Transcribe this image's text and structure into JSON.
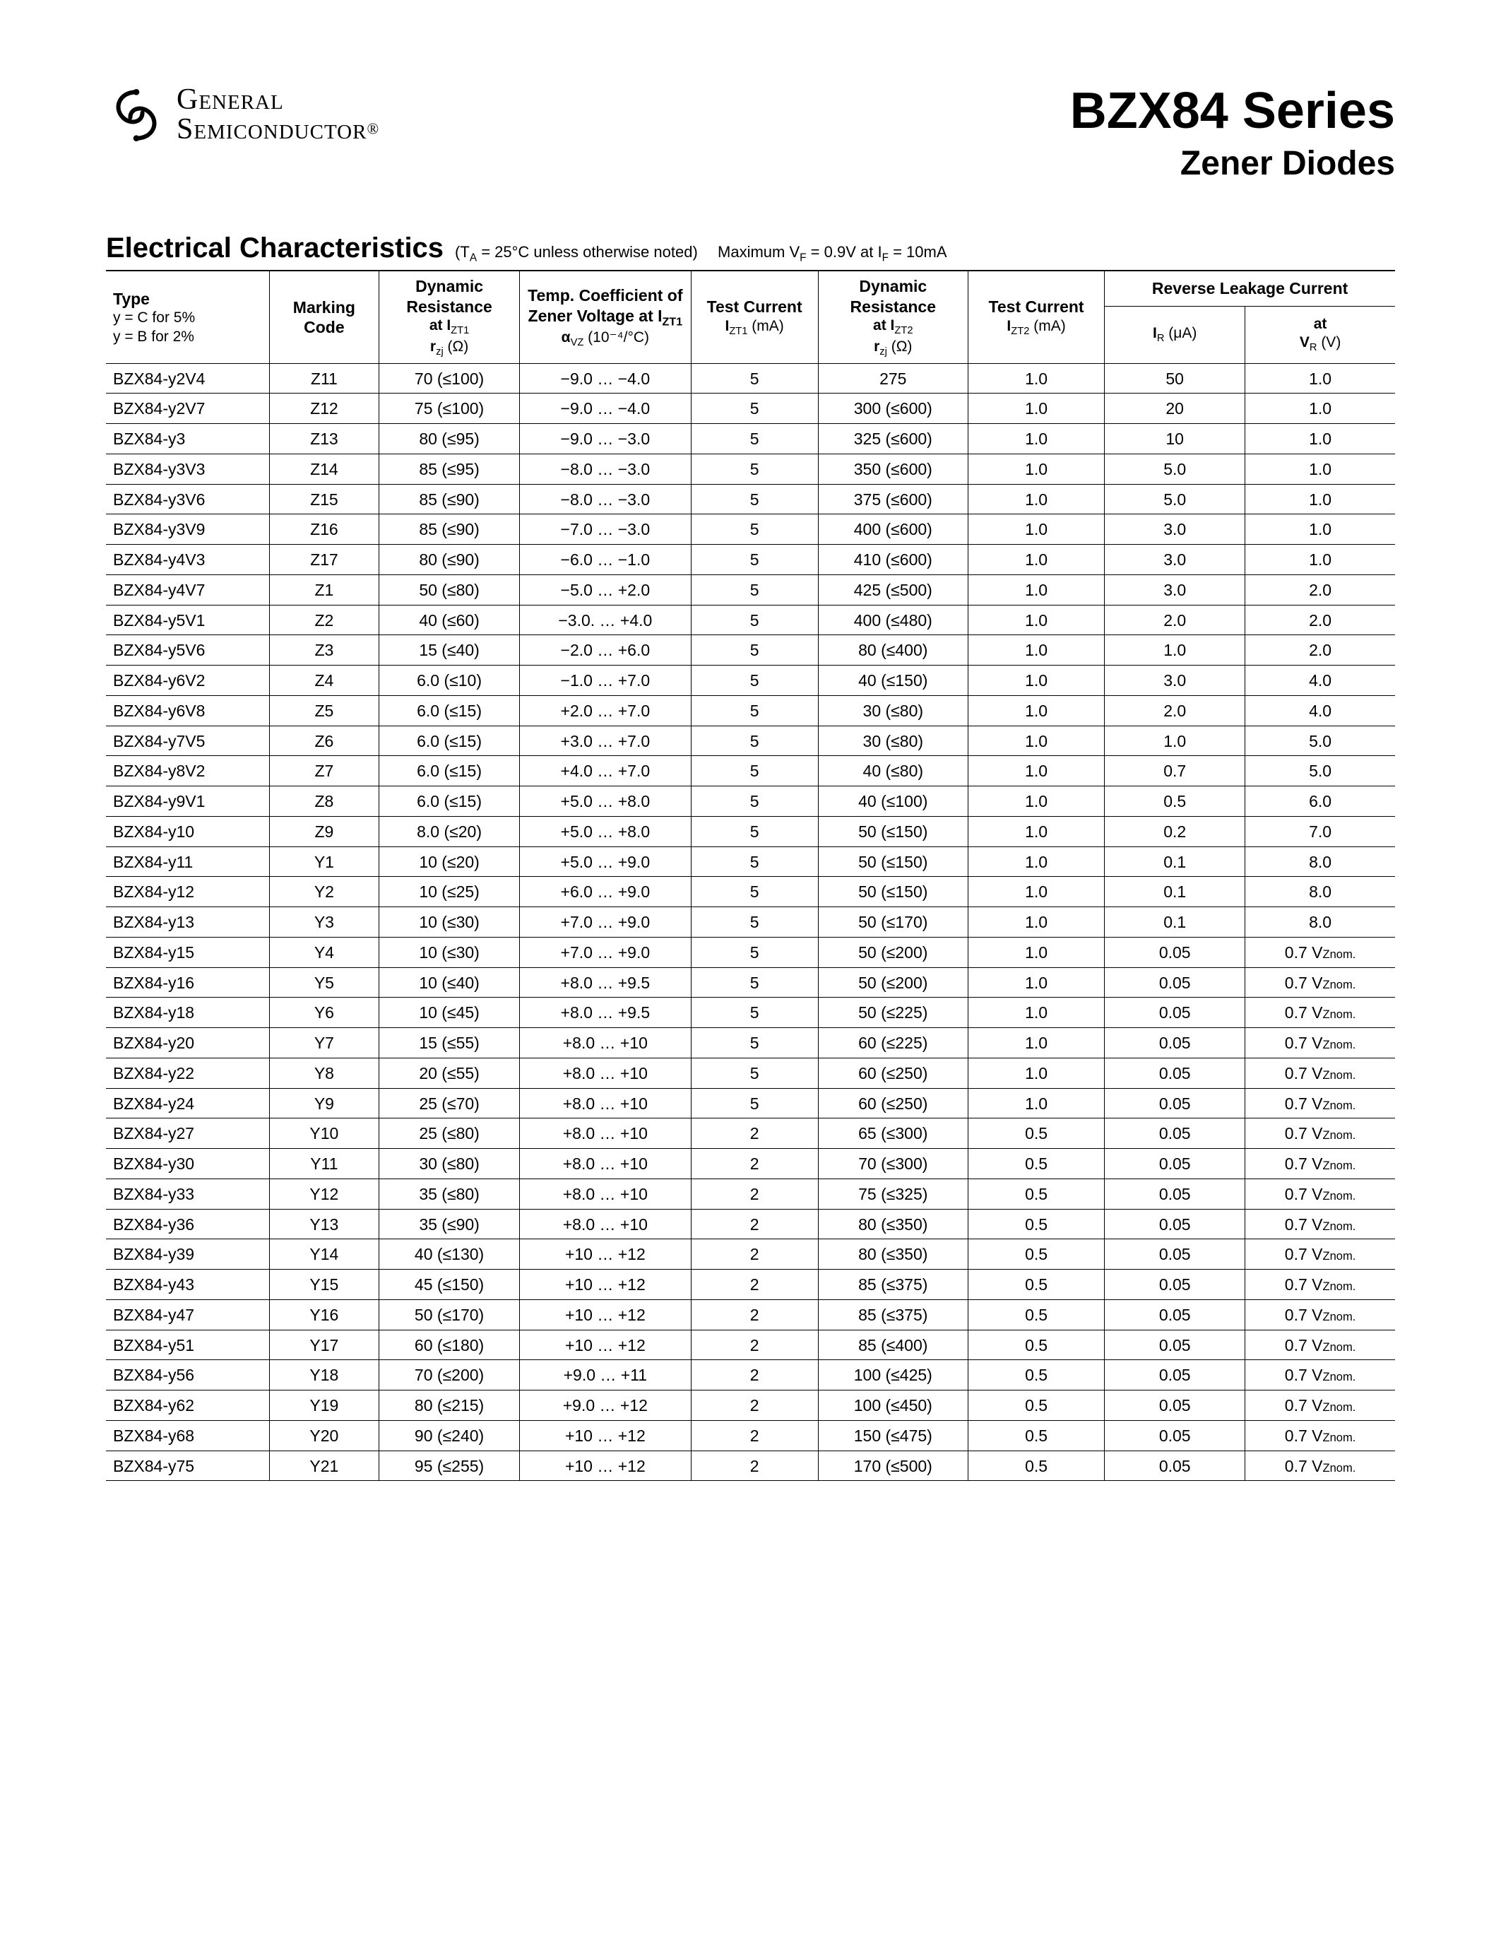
{
  "brand": {
    "line1": "General",
    "line2": "Semiconductor",
    "reg": "®"
  },
  "title": {
    "main": "BZX84 Series",
    "sub": "Zener Diodes"
  },
  "section": {
    "heading": "Electrical Characteristics",
    "note1_prefix": "(T",
    "note1_sub": "A",
    "note1_rest": " = 25°C unless otherwise noted)",
    "note2": "Maximum V",
    "note2_sub": "F",
    "note2_mid": " = 0.9V at I",
    "note2_sub2": "F",
    "note2_end": " = 10mA"
  },
  "headers": {
    "type_label": "Type",
    "type_note1": "y = C for 5%",
    "type_note2": "y = B for 2%",
    "marking": "Marking Code",
    "dynres1_a": "Dynamic Resistance",
    "dynres1_b": "at I",
    "dynres1_b_sub": "ZT1",
    "dynres1_c": "r",
    "dynres1_c_sub": "zj",
    "dynres1_c_unit": " (Ω)",
    "tc_a": "Temp. Coefficient of Zener Voltage at I",
    "tc_a_sub": "ZT1",
    "tc_b": "α",
    "tc_b_sub": "VZ",
    "tc_b_unit": " (10⁻⁴/°C)",
    "testcur1_a": "Test Current",
    "testcur1_b": "I",
    "testcur1_b_sub": "ZT1",
    "testcur1_b_unit": " (mA)",
    "dynres2_a": "Dynamic Resistance",
    "dynres2_b": "at I",
    "dynres2_b_sub": "ZT2",
    "dynres2_c": "r",
    "dynres2_c_sub": "zj",
    "dynres2_c_unit": " (Ω)",
    "testcur2_a": "Test Current",
    "testcur2_b": "I",
    "testcur2_b_sub": "ZT2",
    "testcur2_b_unit": " (mA)",
    "rlc_top": "Reverse Leakage Current",
    "rlc_ir": "I",
    "rlc_ir_sub": "R",
    "rlc_ir_unit": " (μA)",
    "rlc_at": "at",
    "rlc_vr": "V",
    "rlc_vr_sub": "R",
    "rlc_vr_unit": " (V)"
  },
  "rows": [
    {
      "type": "BZX84-y2V4",
      "code": "Z11",
      "rzj1": "70 (≤100)",
      "tc": "−9.0 … −4.0",
      "izt1": "5",
      "rzj2": "275",
      "izt2": "1.0",
      "ir": "50",
      "vr": "1.0",
      "vz": false
    },
    {
      "type": "BZX84-y2V7",
      "code": "Z12",
      "rzj1": "75 (≤100)",
      "tc": "−9.0 … −4.0",
      "izt1": "5",
      "rzj2": "300 (≤600)",
      "izt2": "1.0",
      "ir": "20",
      "vr": "1.0",
      "vz": false
    },
    {
      "type": "BZX84-y3",
      "code": "Z13",
      "rzj1": "80 (≤95)",
      "tc": "−9.0 … −3.0",
      "izt1": "5",
      "rzj2": "325 (≤600)",
      "izt2": "1.0",
      "ir": "10",
      "vr": "1.0",
      "vz": false
    },
    {
      "type": "BZX84-y3V3",
      "code": "Z14",
      "rzj1": "85 (≤95)",
      "tc": "−8.0 … −3.0",
      "izt1": "5",
      "rzj2": "350 (≤600)",
      "izt2": "1.0",
      "ir": "5.0",
      "vr": "1.0",
      "vz": false
    },
    {
      "type": "BZX84-y3V6",
      "code": "Z15",
      "rzj1": "85 (≤90)",
      "tc": "−8.0 … −3.0",
      "izt1": "5",
      "rzj2": "375 (≤600)",
      "izt2": "1.0",
      "ir": "5.0",
      "vr": "1.0",
      "vz": false
    },
    {
      "type": "BZX84-y3V9",
      "code": "Z16",
      "rzj1": "85 (≤90)",
      "tc": "−7.0 … −3.0",
      "izt1": "5",
      "rzj2": "400 (≤600)",
      "izt2": "1.0",
      "ir": "3.0",
      "vr": "1.0",
      "vz": false
    },
    {
      "type": "BZX84-y4V3",
      "code": "Z17",
      "rzj1": "80 (≤90)",
      "tc": "−6.0 … −1.0",
      "izt1": "5",
      "rzj2": "410 (≤600)",
      "izt2": "1.0",
      "ir": "3.0",
      "vr": "1.0",
      "vz": false
    },
    {
      "type": "BZX84-y4V7",
      "code": "Z1",
      "rzj1": "50 (≤80)",
      "tc": "−5.0 … +2.0",
      "izt1": "5",
      "rzj2": "425 (≤500)",
      "izt2": "1.0",
      "ir": "3.0",
      "vr": "2.0",
      "vz": false
    },
    {
      "type": "BZX84-y5V1",
      "code": "Z2",
      "rzj1": "40 (≤60)",
      "tc": "−3.0. … +4.0",
      "izt1": "5",
      "rzj2": "400 (≤480)",
      "izt2": "1.0",
      "ir": "2.0",
      "vr": "2.0",
      "vz": false
    },
    {
      "type": "BZX84-y5V6",
      "code": "Z3",
      "rzj1": "15 (≤40)",
      "tc": "−2.0 … +6.0",
      "izt1": "5",
      "rzj2": "80 (≤400)",
      "izt2": "1.0",
      "ir": "1.0",
      "vr": "2.0",
      "vz": false
    },
    {
      "type": "BZX84-y6V2",
      "code": "Z4",
      "rzj1": "6.0 (≤10)",
      "tc": "−1.0 … +7.0",
      "izt1": "5",
      "rzj2": "40 (≤150)",
      "izt2": "1.0",
      "ir": "3.0",
      "vr": "4.0",
      "vz": false
    },
    {
      "type": "BZX84-y6V8",
      "code": "Z5",
      "rzj1": "6.0 (≤15)",
      "tc": "+2.0 … +7.0",
      "izt1": "5",
      "rzj2": "30 (≤80)",
      "izt2": "1.0",
      "ir": "2.0",
      "vr": "4.0",
      "vz": false
    },
    {
      "type": "BZX84-y7V5",
      "code": "Z6",
      "rzj1": "6.0 (≤15)",
      "tc": "+3.0 … +7.0",
      "izt1": "5",
      "rzj2": "30 (≤80)",
      "izt2": "1.0",
      "ir": "1.0",
      "vr": "5.0",
      "vz": false
    },
    {
      "type": "BZX84-y8V2",
      "code": "Z7",
      "rzj1": "6.0 (≤15)",
      "tc": "+4.0 … +7.0",
      "izt1": "5",
      "rzj2": "40 (≤80)",
      "izt2": "1.0",
      "ir": "0.7",
      "vr": "5.0",
      "vz": false
    },
    {
      "type": "BZX84-y9V1",
      "code": "Z8",
      "rzj1": "6.0 (≤15)",
      "tc": "+5.0 … +8.0",
      "izt1": "5",
      "rzj2": "40 (≤100)",
      "izt2": "1.0",
      "ir": "0.5",
      "vr": "6.0",
      "vz": false
    },
    {
      "type": "BZX84-y10",
      "code": "Z9",
      "rzj1": "8.0 (≤20)",
      "tc": "+5.0 … +8.0",
      "izt1": "5",
      "rzj2": "50 (≤150)",
      "izt2": "1.0",
      "ir": "0.2",
      "vr": "7.0",
      "vz": false
    },
    {
      "type": "BZX84-y11",
      "code": "Y1",
      "rzj1": "10 (≤20)",
      "tc": "+5.0 … +9.0",
      "izt1": "5",
      "rzj2": "50 (≤150)",
      "izt2": "1.0",
      "ir": "0.1",
      "vr": "8.0",
      "vz": false
    },
    {
      "type": "BZX84-y12",
      "code": "Y2",
      "rzj1": "10 (≤25)",
      "tc": "+6.0 … +9.0",
      "izt1": "5",
      "rzj2": "50 (≤150)",
      "izt2": "1.0",
      "ir": "0.1",
      "vr": "8.0",
      "vz": false
    },
    {
      "type": "BZX84-y13",
      "code": "Y3",
      "rzj1": "10 (≤30)",
      "tc": "+7.0 … +9.0",
      "izt1": "5",
      "rzj2": "50 (≤170)",
      "izt2": "1.0",
      "ir": "0.1",
      "vr": "8.0",
      "vz": false
    },
    {
      "type": "BZX84-y15",
      "code": "Y4",
      "rzj1": "10 (≤30)",
      "tc": "+7.0 … +9.0",
      "izt1": "5",
      "rzj2": "50 (≤200)",
      "izt2": "1.0",
      "ir": "0.05",
      "vr": "0.7 ",
      "vz": true
    },
    {
      "type": "BZX84-y16",
      "code": "Y5",
      "rzj1": "10 (≤40)",
      "tc": "+8.0 … +9.5",
      "izt1": "5",
      "rzj2": "50 (≤200)",
      "izt2": "1.0",
      "ir": "0.05",
      "vr": "0.7 ",
      "vz": true
    },
    {
      "type": "BZX84-y18",
      "code": "Y6",
      "rzj1": "10 (≤45)",
      "tc": "+8.0 … +9.5",
      "izt1": "5",
      "rzj2": "50 (≤225)",
      "izt2": "1.0",
      "ir": "0.05",
      "vr": "0.7 ",
      "vz": true
    },
    {
      "type": "BZX84-y20",
      "code": "Y7",
      "rzj1": "15 (≤55)",
      "tc": "+8.0 … +10",
      "izt1": "5",
      "rzj2": "60 (≤225)",
      "izt2": "1.0",
      "ir": "0.05",
      "vr": "0.7 ",
      "vz": true
    },
    {
      "type": "BZX84-y22",
      "code": "Y8",
      "rzj1": "20 (≤55)",
      "tc": "+8.0 … +10",
      "izt1": "5",
      "rzj2": "60 (≤250)",
      "izt2": "1.0",
      "ir": "0.05",
      "vr": "0.7 ",
      "vz": true
    },
    {
      "type": "BZX84-y24",
      "code": "Y9",
      "rzj1": "25 (≤70)",
      "tc": "+8.0 … +10",
      "izt1": "5",
      "rzj2": "60 (≤250)",
      "izt2": "1.0",
      "ir": "0.05",
      "vr": "0.7 ",
      "vz": true
    },
    {
      "type": "BZX84-y27",
      "code": "Y10",
      "rzj1": "25 (≤80)",
      "tc": "+8.0 … +10",
      "izt1": "2",
      "rzj2": "65 (≤300)",
      "izt2": "0.5",
      "ir": "0.05",
      "vr": "0.7 ",
      "vz": true
    },
    {
      "type": "BZX84-y30",
      "code": "Y11",
      "rzj1": "30 (≤80)",
      "tc": "+8.0 … +10",
      "izt1": "2",
      "rzj2": "70 (≤300)",
      "izt2": "0.5",
      "ir": "0.05",
      "vr": "0.7 ",
      "vz": true
    },
    {
      "type": "BZX84-y33",
      "code": "Y12",
      "rzj1": "35 (≤80)",
      "tc": "+8.0 … +10",
      "izt1": "2",
      "rzj2": "75 (≤325)",
      "izt2": "0.5",
      "ir": "0.05",
      "vr": "0.7 ",
      "vz": true
    },
    {
      "type": "BZX84-y36",
      "code": "Y13",
      "rzj1": "35 (≤90)",
      "tc": "+8.0 … +10",
      "izt1": "2",
      "rzj2": "80 (≤350)",
      "izt2": "0.5",
      "ir": "0.05",
      "vr": "0.7 ",
      "vz": true
    },
    {
      "type": "BZX84-y39",
      "code": "Y14",
      "rzj1": "40 (≤130)",
      "tc": "+10 … +12",
      "izt1": "2",
      "rzj2": "80 (≤350)",
      "izt2": "0.5",
      "ir": "0.05",
      "vr": "0.7 ",
      "vz": true
    },
    {
      "type": "BZX84-y43",
      "code": "Y15",
      "rzj1": "45 (≤150)",
      "tc": "+10 … +12",
      "izt1": "2",
      "rzj2": "85 (≤375)",
      "izt2": "0.5",
      "ir": "0.05",
      "vr": "0.7 ",
      "vz": true
    },
    {
      "type": "BZX84-y47",
      "code": "Y16",
      "rzj1": "50 (≤170)",
      "tc": "+10 … +12",
      "izt1": "2",
      "rzj2": "85 (≤375)",
      "izt2": "0.5",
      "ir": "0.05",
      "vr": "0.7 ",
      "vz": true
    },
    {
      "type": "BZX84-y51",
      "code": "Y17",
      "rzj1": "60 (≤180)",
      "tc": "+10 … +12",
      "izt1": "2",
      "rzj2": "85 (≤400)",
      "izt2": "0.5",
      "ir": "0.05",
      "vr": "0.7 ",
      "vz": true
    },
    {
      "type": "BZX84-y56",
      "code": "Y18",
      "rzj1": "70 (≤200)",
      "tc": "+9.0 … +11",
      "izt1": "2",
      "rzj2": "100 (≤425)",
      "izt2": "0.5",
      "ir": "0.05",
      "vr": "0.7 ",
      "vz": true
    },
    {
      "type": "BZX84-y62",
      "code": "Y19",
      "rzj1": "80 (≤215)",
      "tc": "+9.0 … +12",
      "izt1": "2",
      "rzj2": "100 (≤450)",
      "izt2": "0.5",
      "ir": "0.05",
      "vr": "0.7 ",
      "vz": true
    },
    {
      "type": "BZX84-y68",
      "code": "Y20",
      "rzj1": "90 (≤240)",
      "tc": "+10 … +12",
      "izt1": "2",
      "rzj2": "150 (≤475)",
      "izt2": "0.5",
      "ir": "0.05",
      "vr": "0.7 ",
      "vz": true
    },
    {
      "type": "BZX84-y75",
      "code": "Y21",
      "rzj1": "95 (≤255)",
      "tc": "+10 … +12",
      "izt1": "2",
      "rzj2": "170 (≤500)",
      "izt2": "0.5",
      "ir": "0.05",
      "vr": "0.7 ",
      "vz": true
    }
  ],
  "vznom_label": "V",
  "vznom_sub": "Znom."
}
